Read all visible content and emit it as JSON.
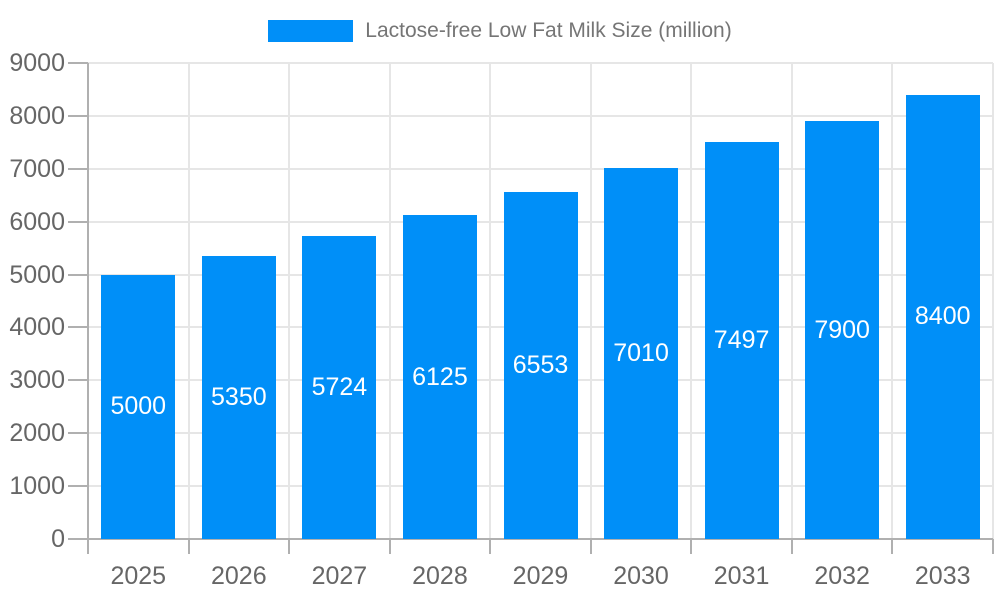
{
  "chart_data": {
    "type": "bar",
    "title": "Lactose-free Low Fat Milk Size (million)",
    "legend_entries": [
      "Lactose-free Low Fat Milk Size (million)"
    ],
    "legend_position": "top-center",
    "categories": [
      "2025",
      "2026",
      "2027",
      "2028",
      "2029",
      "2030",
      "2031",
      "2032",
      "2033"
    ],
    "values": [
      5000,
      5350,
      5724,
      6125,
      6553,
      7010,
      7497,
      7900,
      8400
    ],
    "xlabel": "",
    "ylabel": "",
    "ylim": [
      0,
      9000
    ],
    "ytick_step": 1000,
    "yticks": [
      0,
      1000,
      2000,
      3000,
      4000,
      5000,
      6000,
      7000,
      8000,
      9000
    ],
    "grid": true,
    "bar_color": "#008ff8",
    "value_label_color": "#ffffff",
    "axis_label_color": "#666666",
    "legend_text_color": "#757575",
    "gridline_color": "#e6e6e6",
    "axis_line_color": "#b0b0b0",
    "background_color": "#ffffff"
  }
}
